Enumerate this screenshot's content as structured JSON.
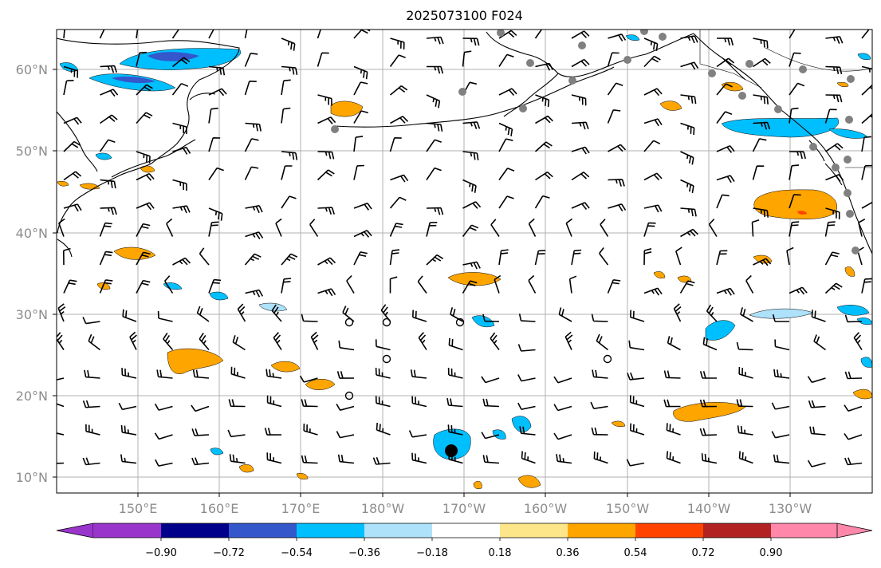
{
  "title": "2025073100 F024",
  "map": {
    "lat_labels": [
      "60°N",
      "50°N",
      "40°N",
      "30°N",
      "20°N",
      "10°N"
    ],
    "lon_labels": [
      "150°E",
      "160°E",
      "170°E",
      "180°W",
      "170°W",
      "160°W",
      "150°W",
      "140°W",
      "130°W"
    ],
    "extent": {
      "lon_min": 140,
      "lon_max": 240,
      "lat_min": 8,
      "lat_max": 65
    }
  },
  "colorbar": {
    "ticks": [
      "−0.90",
      "−0.72",
      "−0.54",
      "−0.36",
      "−0.18",
      "0.18",
      "0.36",
      "0.54",
      "0.72",
      "0.90"
    ],
    "colors": [
      "#9a35cc",
      "#01008a",
      "#3457cc",
      "#00bfff",
      "#aee1fa",
      "#ffffff",
      "#fde68a",
      "#ffa500",
      "#ff4400",
      "#b22222",
      "#ff88aa"
    ]
  },
  "colors": {
    "positive_fill": "#ffa500",
    "negative_fill": "#00bfff",
    "station_gray": "#808080"
  }
}
